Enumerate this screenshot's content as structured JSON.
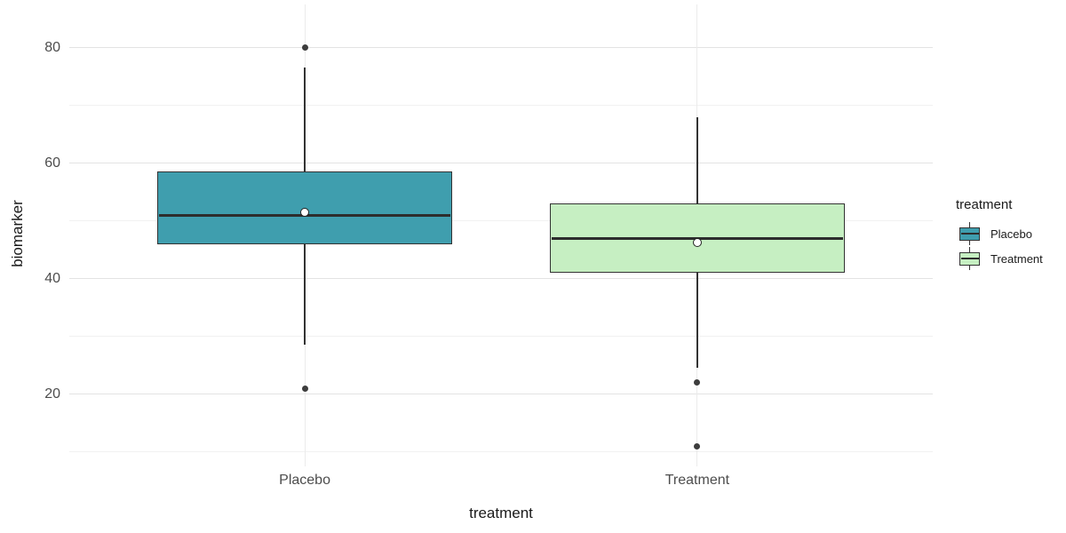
{
  "chart_data": {
    "type": "boxplot",
    "title": "",
    "xlabel": "treatment",
    "ylabel": "biomarker",
    "categories": [
      "Placebo",
      "Treatment"
    ],
    "ylim": [
      8,
      87.5
    ],
    "y_major_ticks": [
      80,
      60,
      40,
      20
    ],
    "y_minor_gridlines": [
      70,
      50,
      30,
      10
    ],
    "grid": "horizontal major+minor, vertical at categories",
    "legend_position": "right",
    "series": [
      {
        "name": "Placebo",
        "fill": "#3f9eae",
        "stroke": "#333333",
        "whisker_low": 28.5,
        "q1": 46,
        "median": 51,
        "q3": 58.5,
        "whisker_high": 76.5,
        "mean": 51.5,
        "outliers": [
          80,
          21
        ]
      },
      {
        "name": "Treatment",
        "fill": "#c6efc2",
        "stroke": "#333333",
        "whisker_low": 24.5,
        "q1": 41,
        "median": 47,
        "q3": 53,
        "whisker_high": 68,
        "mean": 46.2,
        "outliers": [
          22,
          11
        ]
      }
    ]
  },
  "legend": {
    "title": "treatment",
    "entries": [
      {
        "label": "Placebo",
        "fill": "#3f9eae"
      },
      {
        "label": "Treatment",
        "fill": "#c6efc2"
      }
    ]
  },
  "colors": {
    "background": "#ffffff",
    "grid_major": "#e3e3e3",
    "grid_minor": "#f1f1f1",
    "grid_vertical": "#ebebeb",
    "box_stroke": "#333333",
    "median_line": "#2d2d2d",
    "outlier_point": "#3d3d3d",
    "mean_fill": "#ffffff",
    "mean_stroke": "#222222",
    "tick_label": "#4d4d4d",
    "axis_title": "#1a1a1a"
  }
}
